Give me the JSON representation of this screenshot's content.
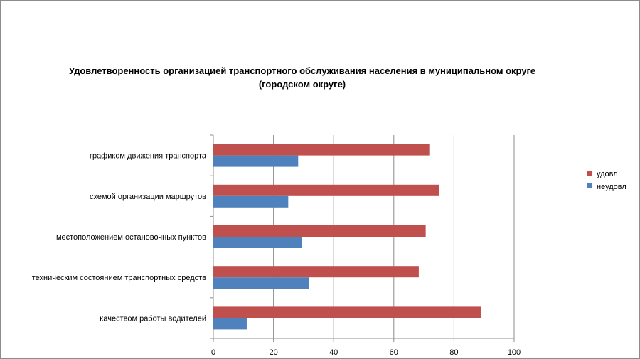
{
  "chart_data": {
    "type": "bar",
    "orientation": "horizontal",
    "title_line1": "Удовлетворенность организацией транспортного обслуживания населения в муниципальном округе",
    "title_line2": "(городском округе)",
    "categories": [
      "графиком движения транспорта",
      "схемой организации маршрутов",
      "местоположением остановочных пунктов",
      "техническим состоянием транспортных средств",
      "качеством работы водителей"
    ],
    "series": [
      {
        "name": "удовл",
        "color": "#c0504d",
        "values": [
          71.8,
          75.1,
          70.6,
          68.3,
          88.9
        ]
      },
      {
        "name": "неудовл",
        "color": "#4f81bd",
        "values": [
          28.2,
          24.9,
          29.4,
          31.7,
          11.1
        ]
      }
    ],
    "xlim": [
      0,
      100
    ],
    "xticks": [
      "0",
      "20",
      "40",
      "60",
      "80",
      "100"
    ],
    "gridlines": "vertical",
    "legend_position": "right"
  }
}
